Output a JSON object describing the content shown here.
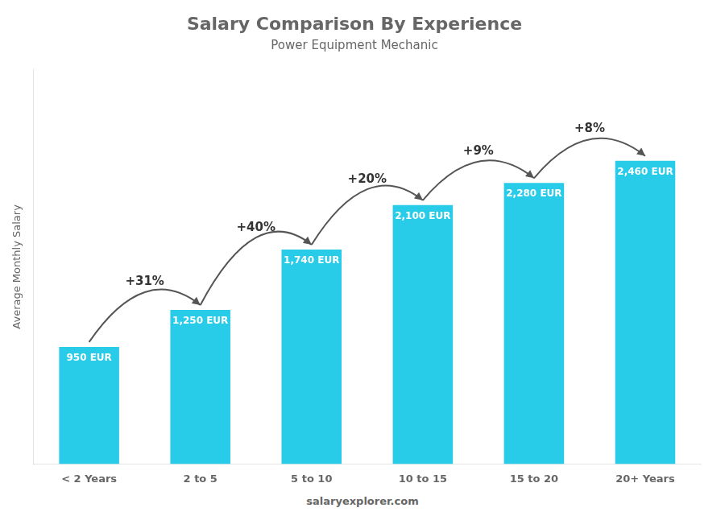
{
  "chart_data": {
    "type": "bar",
    "title": "Salary Comparison By Experience",
    "subtitle": "Power Equipment Mechanic",
    "categories": [
      "< 2 Years",
      "2 to 5",
      "5 to 10",
      "10 to 15",
      "15 to 20",
      "20+ Years"
    ],
    "values": [
      950,
      1250,
      1740,
      2100,
      2280,
      2460
    ],
    "value_labels": [
      "950 EUR",
      "1,250 EUR",
      "1,740 EUR",
      "2,100 EUR",
      "2,280 EUR",
      "2,460 EUR"
    ],
    "data_labels": true,
    "annotations": [
      "+31%",
      "+40%",
      "+20%",
      "+9%",
      "+8%"
    ],
    "ylabel": "Average Monthly Salary",
    "footer": "salaryexplorer.com",
    "color": "#29cce8",
    "ylim": [
      0,
      3200
    ],
    "grid": false,
    "tick_labels": "x",
    "legend": false
  }
}
